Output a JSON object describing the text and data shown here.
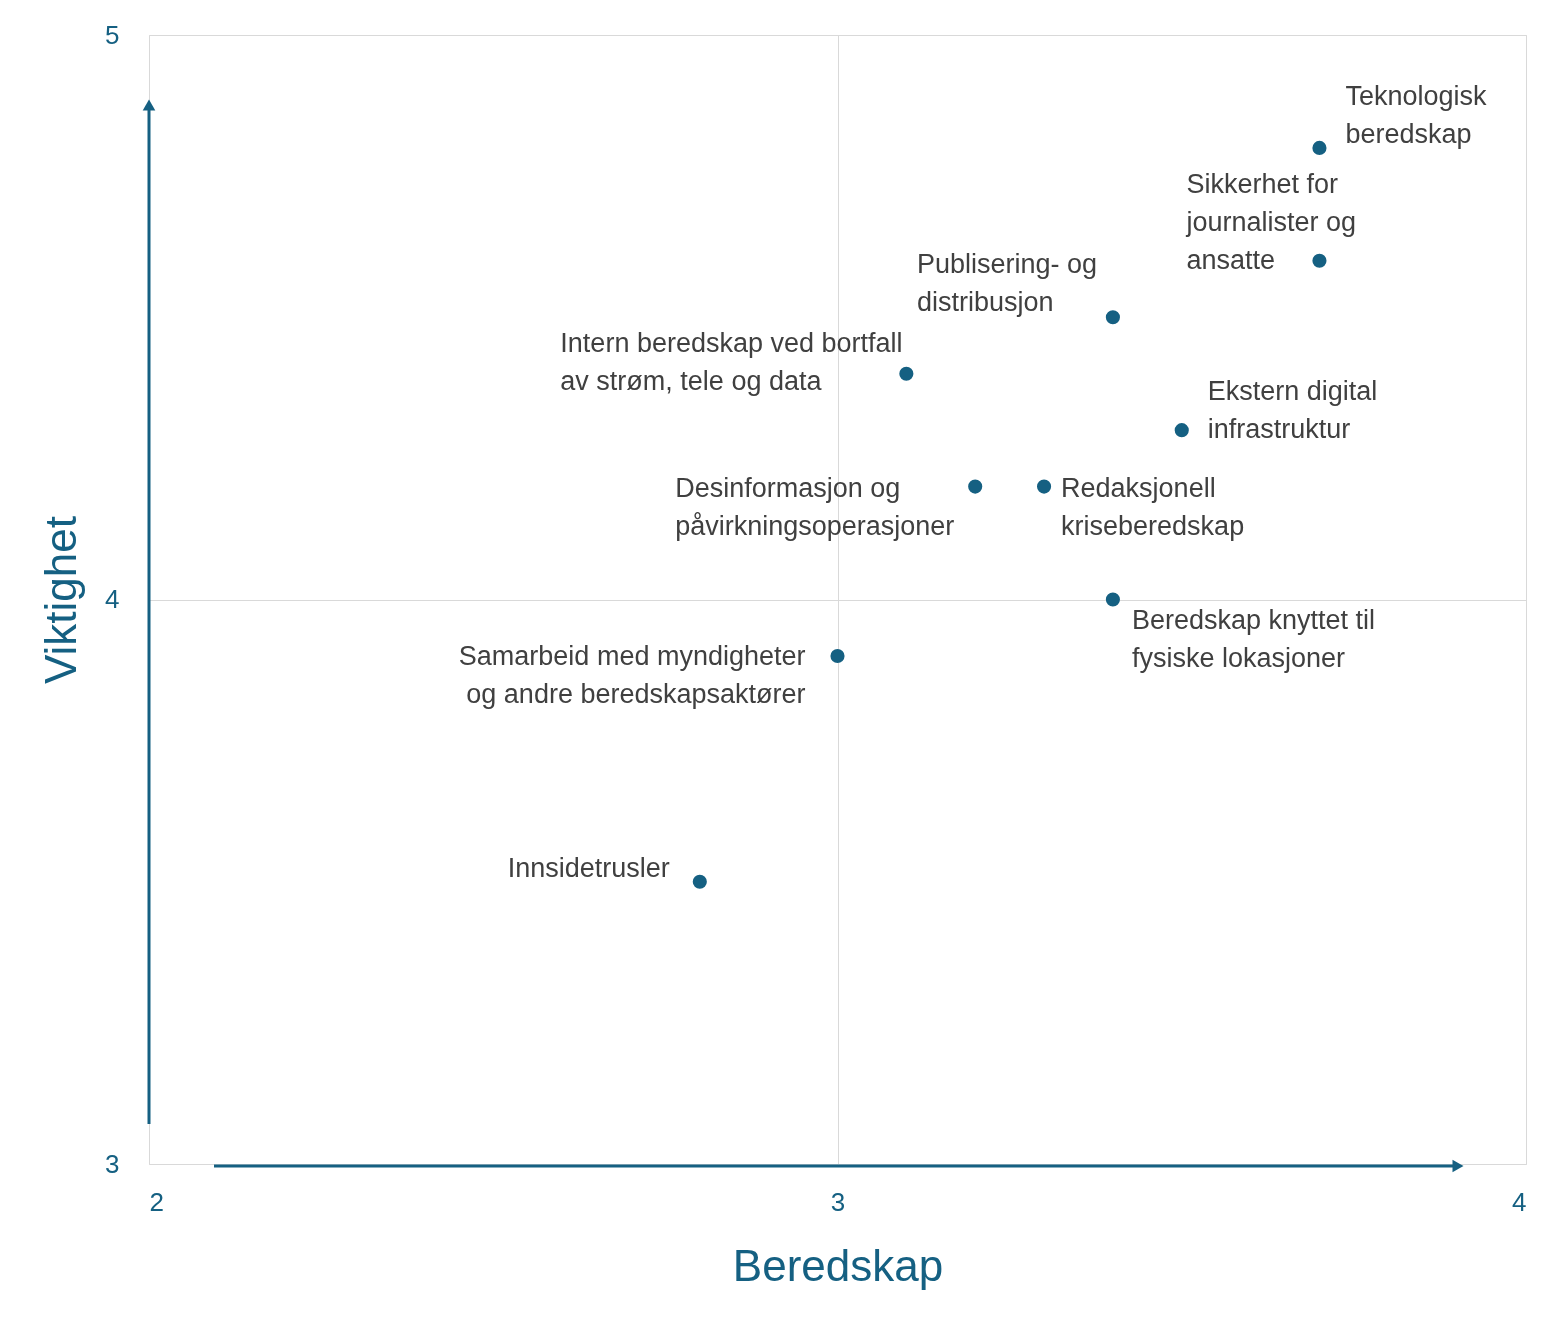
{
  "chart_data": {
    "type": "scatter",
    "xlabel": "Beredskap",
    "ylabel": "Viktighet",
    "x": [
      3.7,
      3.7,
      3.4,
      3.1,
      3.5,
      3.2,
      3.3,
      3.4,
      3.0,
      2.8
    ],
    "series": [
      {
        "color": "#156082",
        "values": [
          4.8,
          4.6,
          4.5,
          4.4,
          4.3,
          4.2,
          4.2,
          4.0,
          3.9,
          3.5
        ]
      }
    ],
    "annotations": [
      {
        "text": "Teknologisk\nberedskap",
        "x": 3.7,
        "y": 4.8
      },
      {
        "text": "Sikkerhet for\njournalister og\nansatte",
        "x": 3.7,
        "y": 4.6
      },
      {
        "text": "Publisering- og\ndistribusjon",
        "x": 3.4,
        "y": 4.5
      },
      {
        "text": "Intern beredskap ved bortfall\nav strøm, tele og data",
        "x": 3.1,
        "y": 4.4
      },
      {
        "text": "Ekstern digital\ninfrastruktur",
        "x": 3.5,
        "y": 4.3
      },
      {
        "text": "Desinformasjon og\npåvirkningsoperasjoner",
        "x": 3.2,
        "y": 4.2
      },
      {
        "text": "Redaksjonell\nkriseberedskap",
        "x": 3.3,
        "y": 4.2
      },
      {
        "text": "Beredskap knyttet til\nfysiske lokasjoner",
        "x": 3.4,
        "y": 4.0
      },
      {
        "text": "Samarbeid med myndigheter\nog andre beredskapsaktører",
        "x": 3.0,
        "y": 3.9
      },
      {
        "text": "Innsidetrusler",
        "x": 2.8,
        "y": 3.5
      }
    ],
    "xlim": [
      2,
      4
    ],
    "ylim": [
      3,
      5
    ],
    "xticks": [
      2,
      3,
      4
    ],
    "yticks": [
      3,
      4,
      5
    ],
    "grid": true,
    "marker": "circle",
    "legend": false
  }
}
